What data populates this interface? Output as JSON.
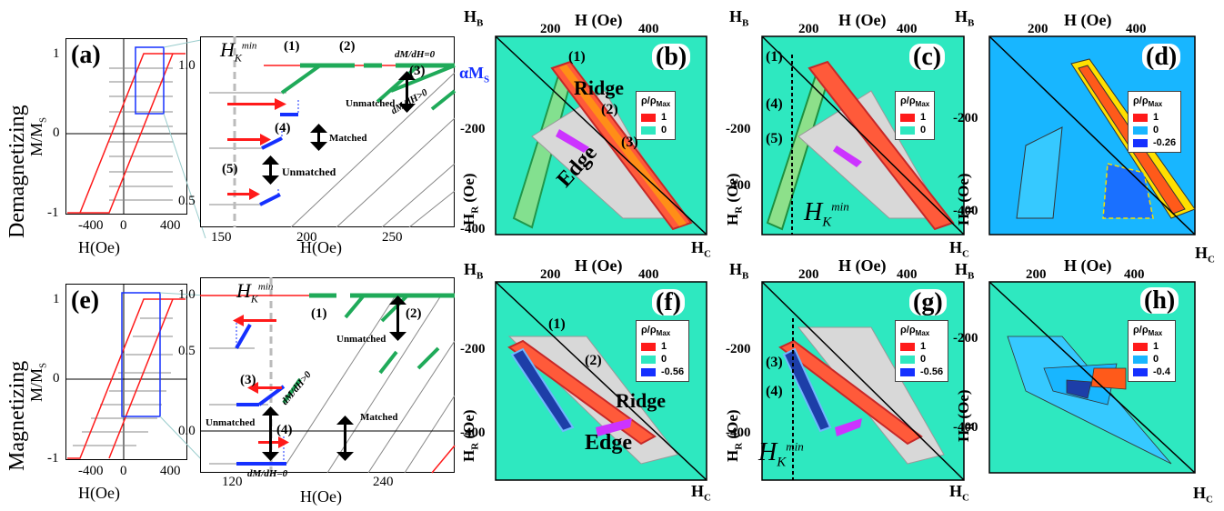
{
  "rows": {
    "top": "Demagnetizing",
    "bottom": "Magnetizing"
  },
  "panel_labels": {
    "a": "(a)",
    "b": "(b)",
    "c": "(c)",
    "d": "(d)",
    "e": "(e)",
    "f": "(f)",
    "g": "(g)",
    "h": "(h)"
  },
  "loop_axes": {
    "ylabel": "M/M",
    "ylabel_sub": "S",
    "xlabel": "H(Oe)",
    "a_yticks": [
      "1",
      "0",
      "-1"
    ],
    "a_xticks": [
      "-400",
      "0",
      "400"
    ],
    "e_yticks": [
      "1",
      "0",
      "-1"
    ],
    "e_xticks": [
      "-400",
      "0",
      "400"
    ]
  },
  "zoom_top": {
    "yticks": [
      "1.0",
      "0.5"
    ],
    "xticks": [
      "150",
      "200",
      "250"
    ],
    "xlabel": "H(Oe)",
    "hk_label": "H",
    "hk_sub": "K",
    "hk_sup": "min",
    "labels": {
      "p1": "(1)",
      "p2": "(2)",
      "p3": "(3)",
      "p4": "(4)",
      "p5": "(5)"
    },
    "unmatched1": "Unmatched",
    "matched": "Matched",
    "unmatched2": "Unmatched",
    "dmdh0": "dM/dH=0",
    "dmdhpos": "dM/dH>0"
  },
  "zoom_bottom": {
    "yticks": [
      "1.0",
      "0.5",
      "0.0"
    ],
    "xticks": [
      "120",
      "240"
    ],
    "xlabel": "H(Oe)",
    "hk_label": "H",
    "hk_sub": "K",
    "hk_sup": "min",
    "labels": {
      "p1": "(1)",
      "p2": "(2)",
      "p3": "(3)",
      "p4": "(4)"
    },
    "unmatched1": "Unmatched",
    "unmatched2": "Unmatched",
    "matched": "Matched",
    "dmdhpos": "dM/dH>0",
    "dmdh0": "dM/dH=0"
  },
  "forc_axes": {
    "h_top": "H (Oe)",
    "hb": "H",
    "hb_sub": "B",
    "hc": "H",
    "hc_sub": "C",
    "hr": "H",
    "hr_sub": "R",
    "hr_unit": " (Oe)",
    "top_xticks": [
      "200",
      "400"
    ],
    "top_yticks": [
      "-200",
      "-400"
    ],
    "bottom_yticks": [
      "-200",
      "-400"
    ]
  },
  "panel_b": {
    "ridge": "Ridge",
    "edge": "Edge",
    "alpha": "αM",
    "alpha_sub": "S",
    "p1": "(1)",
    "p2": "(2)",
    "p3": "(3)"
  },
  "panel_c": {
    "p1": "(1)",
    "p4": "(4)",
    "p5": "(5)",
    "hk": "H",
    "hk_sub": "K",
    "hk_sup": "min"
  },
  "panel_f": {
    "ridge": "Ridge",
    "edge": "Edge",
    "p1": "(1)",
    "p2": "(2)"
  },
  "panel_g": {
    "p3": "(3)",
    "p4": "(4)",
    "hk": "H",
    "hk_sub": "K",
    "hk_sup": "min"
  },
  "legends": {
    "title": "ρ/ρ",
    "title_sub": "Max",
    "b": [
      "1",
      "0"
    ],
    "c": [
      "1",
      "0"
    ],
    "d": [
      "1",
      "0",
      "-0.26"
    ],
    "f": [
      "1",
      "0",
      "-0.56"
    ],
    "g": [
      "1",
      "0",
      "-0.56"
    ],
    "h": [
      "1",
      "0",
      "-0.4"
    ]
  },
  "colors": {
    "red": "#ff1a1a",
    "green": "#1faa59",
    "blue": "#1530ff",
    "bg": "#2ee8c0",
    "map_blue": "#18b6ff",
    "grey": "#8a8a8a",
    "magenta": "#cc33ff"
  }
}
